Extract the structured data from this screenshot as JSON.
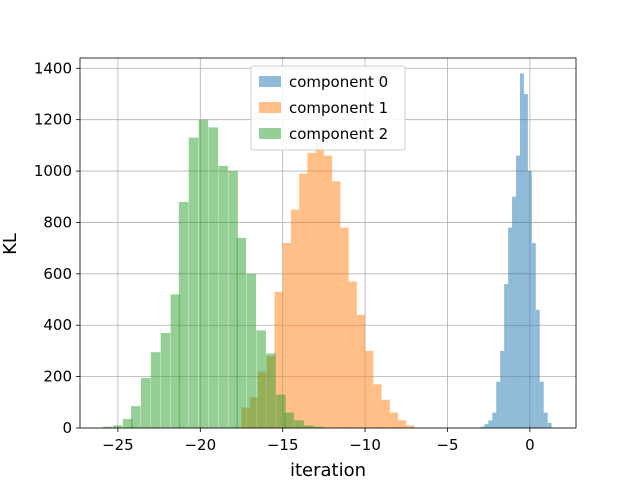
{
  "chart_data": {
    "type": "histogram",
    "xlabel": "iteration",
    "ylabel": "KL",
    "xlim": [
      -27.3,
      2.8
    ],
    "ylim": [
      0,
      1440
    ],
    "x_ticks": [
      -25,
      -20,
      -15,
      -10,
      -5,
      0
    ],
    "x_tick_labels": [
      "−25",
      "−20",
      "−15",
      "−10",
      "−5",
      "0"
    ],
    "y_ticks": [
      0,
      200,
      400,
      600,
      800,
      1000,
      1200,
      1400
    ],
    "y_tick_labels": [
      "0",
      "200",
      "400",
      "600",
      "800",
      "1000",
      "1200",
      "1400"
    ],
    "grid": true,
    "legend_position": "top-center",
    "series": [
      {
        "name": "component 0",
        "color": "#1f77b4",
        "opacity": 0.5,
        "bin_width": 0.24,
        "bins_start": [
          -3.0,
          -2.76,
          -2.52,
          -2.28,
          -2.04,
          -1.8,
          -1.56,
          -1.32,
          -1.08,
          -0.84,
          -0.6,
          -0.36,
          -0.12,
          0.12,
          0.36,
          0.6,
          0.84,
          1.08
        ],
        "values": [
          5,
          15,
          30,
          60,
          180,
          300,
          560,
          780,
          900,
          1060,
          1380,
          1300,
          1000,
          720,
          460,
          180,
          60,
          20
        ]
      },
      {
        "name": "component 1",
        "color": "#ff7f0e",
        "opacity": 0.5,
        "bin_width": 0.5,
        "bins_start": [
          -17.5,
          -17.0,
          -16.5,
          -16.0,
          -15.5,
          -15.0,
          -14.5,
          -14.0,
          -13.5,
          -13.0,
          -12.5,
          -12.0,
          -11.5,
          -11.0,
          -10.5,
          -10.0,
          -9.5,
          -9.0,
          -8.5,
          -8.0,
          -7.5
        ],
        "values": [
          80,
          120,
          220,
          280,
          530,
          720,
          850,
          990,
          1070,
          1110,
          1060,
          960,
          780,
          570,
          440,
          300,
          170,
          110,
          60,
          30,
          10
        ]
      },
      {
        "name": "component 2",
        "color": "#2ca02c",
        "opacity": 0.5,
        "bin_width": 0.58,
        "bins_start": [
          -25.9,
          -25.3,
          -24.7,
          -24.2,
          -23.6,
          -23.0,
          -22.4,
          -21.8,
          -21.3,
          -20.7,
          -20.1,
          -19.5,
          -18.9,
          -18.3,
          -17.8,
          -17.2,
          -16.6,
          -16.0,
          -15.4,
          -14.9,
          -14.3,
          -13.7,
          -13.1
        ],
        "values": [
          5,
          10,
          35,
          85,
          195,
          295,
          370,
          520,
          880,
          1130,
          1200,
          1170,
          1020,
          1000,
          740,
          600,
          380,
          290,
          130,
          60,
          30,
          10,
          5
        ]
      }
    ]
  }
}
